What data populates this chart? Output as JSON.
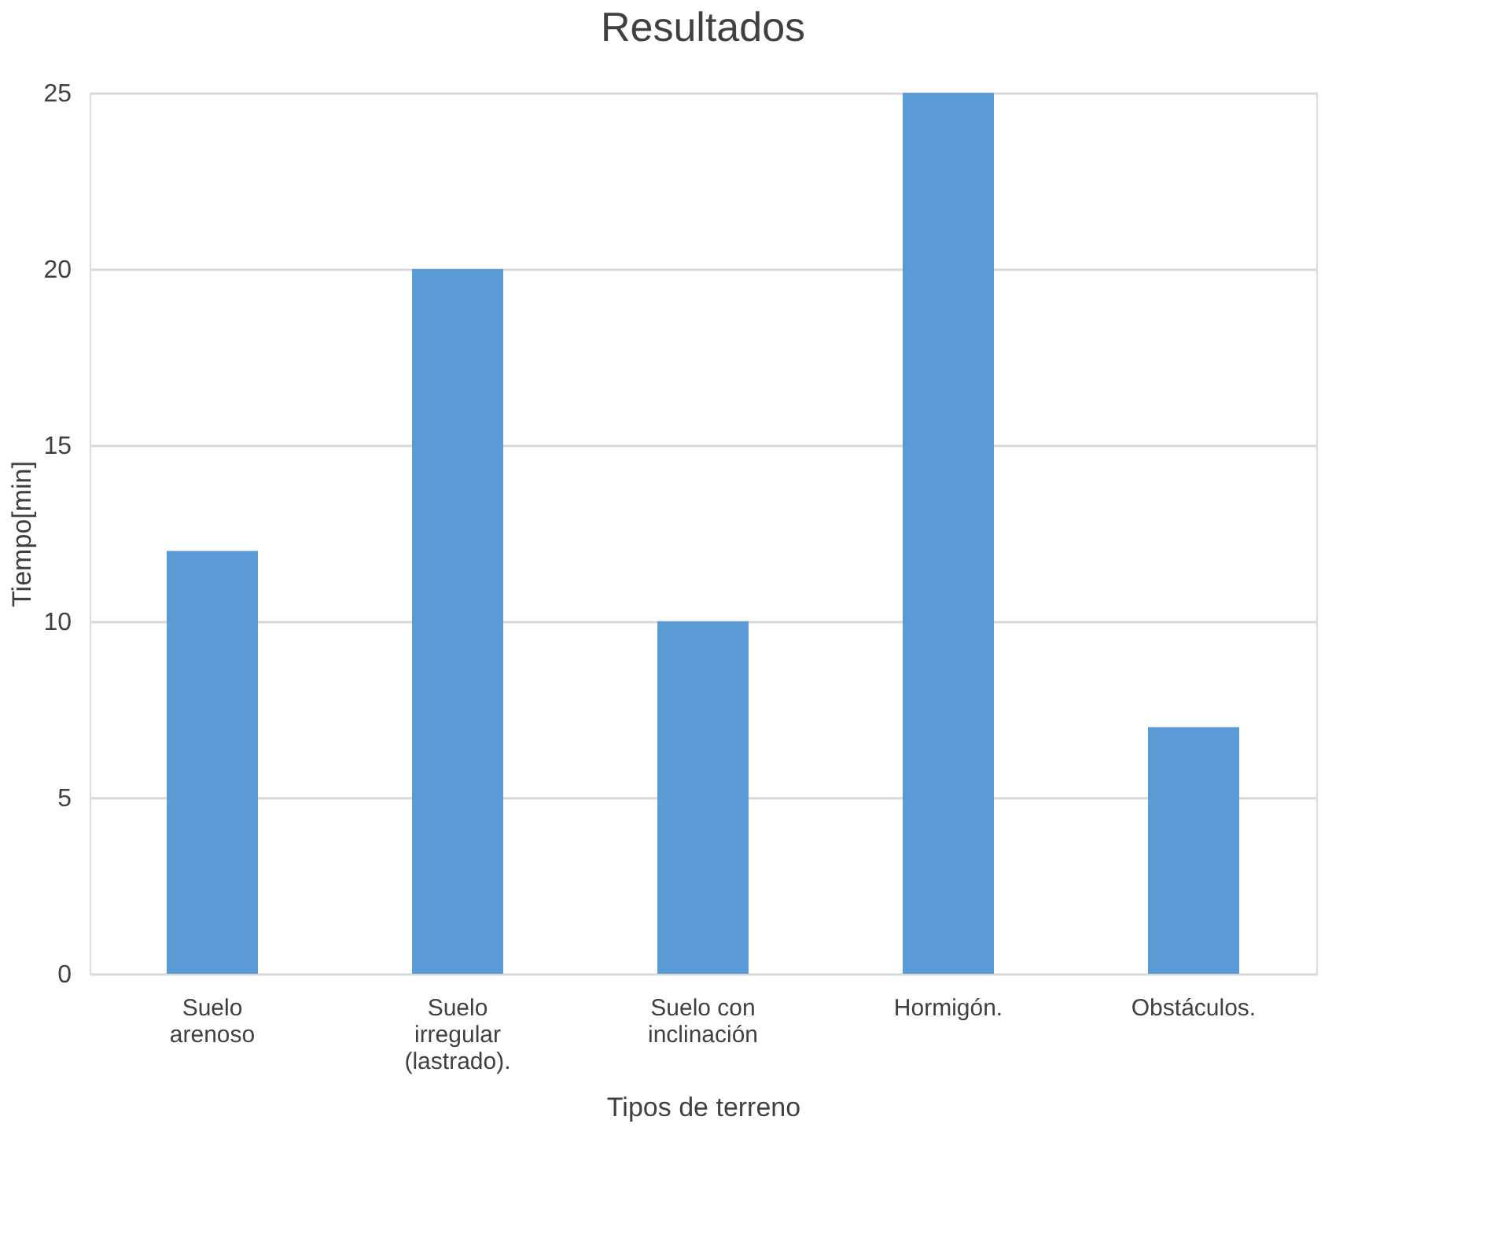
{
  "chart_data": {
    "type": "bar",
    "title": "Resultados",
    "xlabel": "Tipos de terreno",
    "ylabel": "Tiempo[min]",
    "categories": [
      "Suelo arenoso",
      "Suelo irregular (lastrado).",
      "Suelo con inclinación",
      "Hormigón.",
      "Obstáculos."
    ],
    "values": [
      12,
      20,
      10,
      25,
      7
    ],
    "color": "#5b9bd5",
    "ylim": [
      0,
      25
    ],
    "yticks": [
      0,
      5,
      10,
      15,
      20,
      25
    ],
    "grid": "y"
  }
}
